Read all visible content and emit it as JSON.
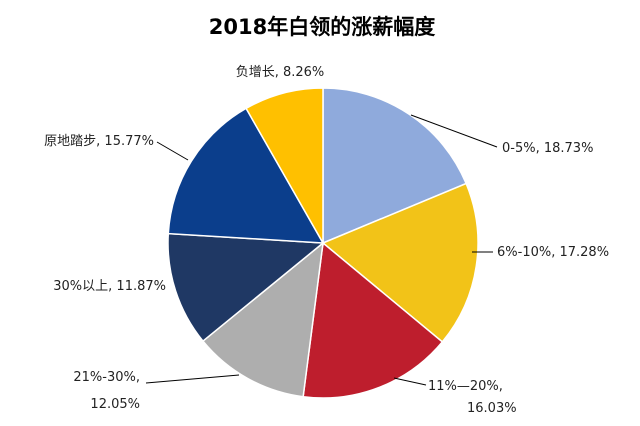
{
  "chart_data": {
    "type": "pie",
    "title": "2018年白领的涨薪幅度",
    "legend": "none",
    "slices": [
      {
        "name": "0-5%",
        "value": 18.73,
        "label": "0-5%, 18.73%",
        "color": "#8FAADC"
      },
      {
        "name": "6%-10%",
        "value": 17.28,
        "label": "6%-10%, 17.28%",
        "color": "#F2C318"
      },
      {
        "name": "11%—20%",
        "value": 16.03,
        "label": "11%—20%,|16.03%",
        "color": "#BE1E2D"
      },
      {
        "name": "21%-30%",
        "value": 12.05,
        "label": "21%-30%,|12.05%",
        "color": "#AEAEAE"
      },
      {
        "name": "30%以上",
        "value": 11.87,
        "label": "30%以上, 11.87%",
        "color": "#1F3864"
      },
      {
        "name": "原地踏步",
        "value": 15.77,
        "label": "原地踏步, 15.77%",
        "color": "#0B3E8C"
      },
      {
        "name": "负增长",
        "value": 8.26,
        "label": "负增长, 8.26%",
        "color": "#FFC000"
      }
    ]
  }
}
